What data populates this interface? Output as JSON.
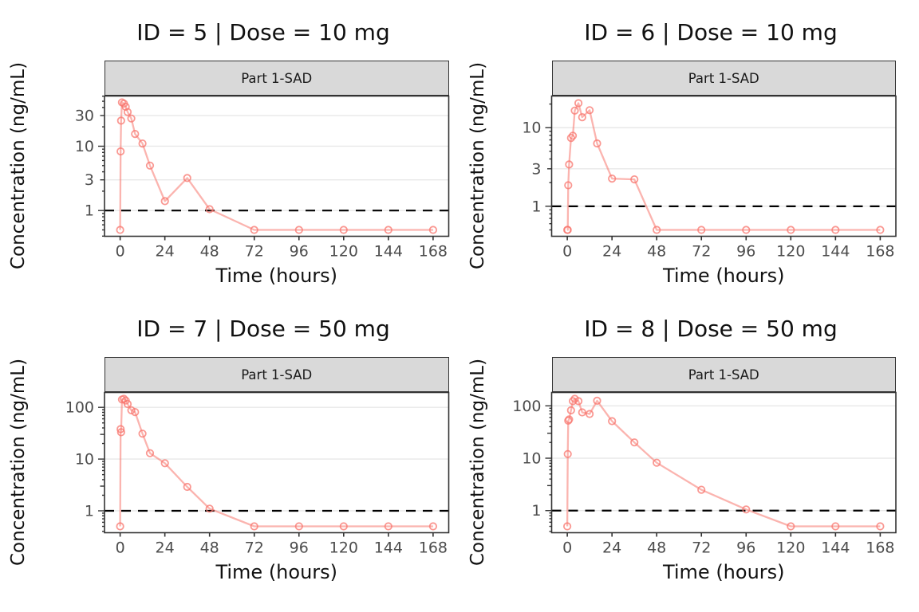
{
  "shared": {
    "x_label": "Time (hours)",
    "y_label": "Concentration (ng/mL)",
    "x_ticks": [
      0,
      24,
      48,
      72,
      96,
      120,
      144,
      168
    ],
    "x_range": [
      -8.4,
      176.4
    ],
    "lloq": 1
  },
  "style": {
    "line_color": "#F8766D",
    "line_alpha": 0.55,
    "marker_alpha": 0.75,
    "grid_color": "#E8E8E8",
    "strip_fill": "#D9D9D9",
    "border_color": "#333333",
    "tick_color": "#333333",
    "tick_label_color": "#4D4D4D",
    "text_color": "#111111",
    "lloq_color": "#000000"
  },
  "chart_data": {
    "type": "line",
    "log_y": true,
    "grid": "horizontal-major-only",
    "x": [
      0,
      0.25,
      0.5,
      1,
      2,
      3,
      4,
      6,
      8,
      12,
      16,
      24,
      36,
      48,
      72,
      96,
      120,
      144,
      168
    ],
    "panels": [
      {
        "id": "5",
        "dose": "10 mg",
        "title": "ID = 5 | Dose = 10 mg",
        "strip_label": "Part 1-SAD",
        "y_breaks": [
          30,
          10,
          3,
          1
        ],
        "y_range": [
          0.398,
          60.3
        ],
        "lloq_line": 1,
        "values": [
          0.5,
          8.3,
          25,
          48,
          46,
          41,
          34,
          27,
          15.5,
          11,
          5.0,
          1.4,
          3.2,
          1.05,
          0.5,
          0.5,
          0.5,
          0.5,
          0.5
        ]
      },
      {
        "id": "6",
        "dose": "10 mg",
        "title": "ID = 6 | Dose = 10 mg",
        "strip_label": "Part 1-SAD",
        "y_breaks": [
          10,
          3,
          1
        ],
        "y_range": [
          0.415,
          25.3
        ],
        "lloq_line": 1,
        "values": [
          0.5,
          0.5,
          1.85,
          3.4,
          7.4,
          7.9,
          16.5,
          20.5,
          13.6,
          16.7,
          6.3,
          2.25,
          2.2,
          0.5,
          0.5,
          0.5,
          0.5,
          0.5,
          0.5
        ]
      },
      {
        "id": "7",
        "dose": "50 mg",
        "title": "ID = 7 | Dose = 50 mg",
        "strip_label": "Part 1-SAD",
        "y_breaks": [
          100,
          10,
          1
        ],
        "y_range": [
          0.377,
          194
        ],
        "lloq_line": 1,
        "values": [
          0.5,
          38,
          33,
          142,
          146,
          135,
          116,
          88,
          81,
          31,
          13,
          8.3,
          2.9,
          1.1,
          0.5,
          0.5,
          0.5,
          0.5,
          0.5
        ]
      },
      {
        "id": "8",
        "dose": "50 mg",
        "title": "ID = 8 | Dose = 50 mg",
        "strip_label": "Part 1-SAD",
        "y_breaks": [
          100,
          10,
          1
        ],
        "y_range": [
          0.378,
          180
        ],
        "lloq_line": 1,
        "values": [
          0.5,
          12,
          52,
          55,
          82,
          123,
          136,
          123,
          75,
          70,
          125,
          51,
          20,
          8.2,
          2.5,
          1.05,
          0.5,
          0.5,
          0.5
        ]
      }
    ]
  }
}
